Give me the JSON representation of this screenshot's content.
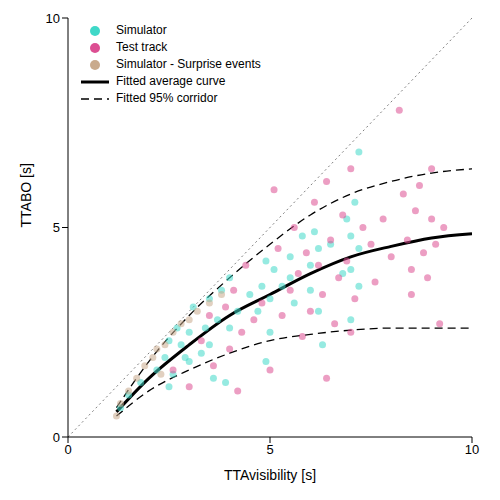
{
  "chart_data": {
    "type": "scatter",
    "xlabel": "TTAvisibility [s]",
    "ylabel": "TTABO [s]",
    "xlim": [
      0,
      10
    ],
    "ylim": [
      0,
      10
    ],
    "xticks": [
      0,
      5,
      10
    ],
    "yticks": [
      0,
      5,
      10
    ],
    "legend": "upper left",
    "reference_line": {
      "x": [
        0,
        10
      ],
      "values": [
        0,
        10
      ],
      "color": "#808080",
      "line_style": "dotted"
    },
    "series": [
      {
        "name": "Simulator",
        "color": "#3fd8c8",
        "type": "scatter",
        "marker": "circle",
        "x": [
          1.3,
          1.5,
          1.8,
          2.2,
          2.4,
          2.5,
          2.5,
          2.6,
          2.7,
          2.8,
          2.9,
          3.0,
          3.0,
          3.1,
          3.3,
          3.4,
          3.5,
          3.5,
          3.6,
          3.7,
          3.8,
          4.0,
          4.0,
          4.2,
          4.5,
          4.7,
          4.8,
          4.9,
          5.0,
          5.0,
          5.1,
          5.3,
          5.5,
          5.5,
          5.6,
          5.8,
          6.0,
          6.0,
          6.1,
          6.2,
          6.2,
          6.3,
          6.5,
          6.9,
          7.0,
          7.0,
          7.1,
          7.2,
          7.2,
          7.2,
          7.0,
          6.8,
          3.9,
          4.9
        ],
        "values": [
          0.7,
          1.0,
          1.3,
          1.6,
          1.9,
          2.3,
          1.2,
          1.5,
          2.6,
          2.2,
          1.9,
          2.5,
          1.8,
          3.1,
          2.0,
          2.6,
          3.3,
          2.2,
          1.4,
          2.8,
          3.5,
          3.8,
          2.6,
          3.0,
          3.4,
          3.0,
          3.6,
          4.2,
          3.3,
          2.5,
          4.0,
          3.6,
          4.3,
          3.8,
          3.2,
          4.8,
          4.1,
          3.5,
          4.9,
          4.5,
          3.0,
          2.2,
          4.6,
          5.2,
          4.0,
          4.8,
          5.6,
          3.6,
          4.5,
          6.8,
          2.8,
          3.9,
          1.3,
          1.8
        ]
      },
      {
        "name": "Test track",
        "color": "#dc4e92",
        "type": "scatter",
        "marker": "circle",
        "x": [
          2.6,
          3.0,
          3.3,
          3.5,
          3.6,
          3.9,
          4.0,
          4.1,
          4.3,
          4.4,
          4.6,
          4.8,
          5.0,
          5.2,
          5.3,
          5.5,
          5.6,
          5.7,
          5.8,
          5.9,
          6.0,
          6.1,
          6.2,
          6.3,
          6.4,
          6.5,
          6.6,
          6.7,
          6.8,
          6.9,
          7.0,
          7.1,
          7.3,
          7.5,
          7.6,
          7.8,
          8.0,
          8.2,
          8.3,
          8.4,
          8.5,
          8.5,
          8.6,
          8.7,
          8.8,
          8.9,
          9.0,
          9.1,
          9.2,
          9.3,
          9.0,
          7.0,
          5.1,
          4.2,
          6.4
        ],
        "values": [
          1.6,
          1.2,
          2.3,
          2.9,
          1.7,
          3.1,
          2.1,
          3.5,
          2.5,
          4.1,
          2.8,
          3.2,
          1.6,
          4.5,
          2.9,
          3.5,
          5.0,
          3.9,
          2.4,
          4.4,
          3.0,
          5.6,
          4.1,
          3.4,
          6.1,
          4.7,
          2.7,
          3.8,
          5.3,
          4.2,
          6.4,
          3.3,
          5.0,
          4.6,
          3.7,
          5.2,
          4.3,
          7.8,
          5.8,
          4.7,
          4.0,
          3.4,
          5.4,
          6.0,
          4.4,
          3.8,
          5.2,
          4.6,
          2.7,
          5.0,
          6.4,
          2.5,
          5.9,
          1.1,
          1.4
        ]
      },
      {
        "name": "Simulator - Surprise events",
        "color": "#c9aa8c",
        "type": "scatter",
        "marker": "circle",
        "x": [
          1.2,
          1.3,
          1.5,
          1.7,
          1.9,
          2.1,
          2.2,
          2.4,
          2.6,
          2.8,
          3.0,
          3.2,
          3.5,
          3.8,
          2.3
        ],
        "values": [
          0.5,
          0.8,
          1.1,
          1.4,
          1.7,
          1.9,
          2.1,
          2.2,
          2.5,
          2.7,
          2.8,
          3.0,
          3.2,
          3.4,
          1.5
        ]
      },
      {
        "name": "Fitted average curve",
        "color": "#000000",
        "type": "line",
        "line_style": "solid",
        "x": [
          1.2,
          2,
          3,
          4,
          5,
          6,
          7,
          8,
          9,
          10
        ],
        "values": [
          0.6,
          1.4,
          2.2,
          2.9,
          3.4,
          3.9,
          4.3,
          4.55,
          4.75,
          4.85
        ]
      },
      {
        "name": "Fitted 95% corridor",
        "color": "#000000",
        "type": "line",
        "line_style": "dashed",
        "x": [
          1.2,
          2,
          3,
          4,
          5,
          6,
          7,
          8,
          9,
          10
        ],
        "values": [
          0.7,
          1.8,
          2.9,
          3.8,
          4.6,
          5.3,
          5.8,
          6.1,
          6.3,
          6.4
        ]
      },
      {
        "name": "Fitted 95% corridor",
        "color": "#000000",
        "type": "line",
        "line_style": "dashed",
        "x": [
          1.2,
          2,
          3,
          4,
          5,
          6,
          7,
          8,
          9,
          10
        ],
        "values": [
          0.5,
          1.1,
          1.6,
          2.0,
          2.3,
          2.45,
          2.55,
          2.6,
          2.6,
          2.6
        ]
      }
    ]
  }
}
